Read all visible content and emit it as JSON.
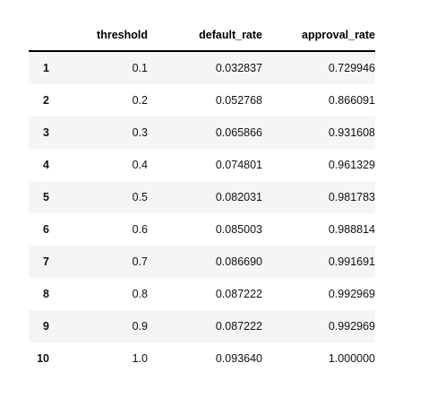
{
  "table": {
    "columns": [
      "",
      "threshold",
      "default_rate",
      "approval_rate"
    ],
    "rows": [
      {
        "index": "1",
        "threshold": "0.1",
        "default_rate": "0.032837",
        "approval_rate": "0.729946"
      },
      {
        "index": "2",
        "threshold": "0.2",
        "default_rate": "0.052768",
        "approval_rate": "0.866091"
      },
      {
        "index": "3",
        "threshold": "0.3",
        "default_rate": "0.065866",
        "approval_rate": "0.931608"
      },
      {
        "index": "4",
        "threshold": "0.4",
        "default_rate": "0.074801",
        "approval_rate": "0.961329"
      },
      {
        "index": "5",
        "threshold": "0.5",
        "default_rate": "0.082031",
        "approval_rate": "0.981783"
      },
      {
        "index": "6",
        "threshold": "0.6",
        "default_rate": "0.085003",
        "approval_rate": "0.988814"
      },
      {
        "index": "7",
        "threshold": "0.7",
        "default_rate": "0.086690",
        "approval_rate": "0.991691"
      },
      {
        "index": "8",
        "threshold": "0.8",
        "default_rate": "0.087222",
        "approval_rate": "0.992969"
      },
      {
        "index": "9",
        "threshold": "0.9",
        "default_rate": "0.087222",
        "approval_rate": "0.992969"
      },
      {
        "index": "10",
        "threshold": "1.0",
        "default_rate": "0.093640",
        "approval_rate": "1.000000"
      }
    ]
  }
}
